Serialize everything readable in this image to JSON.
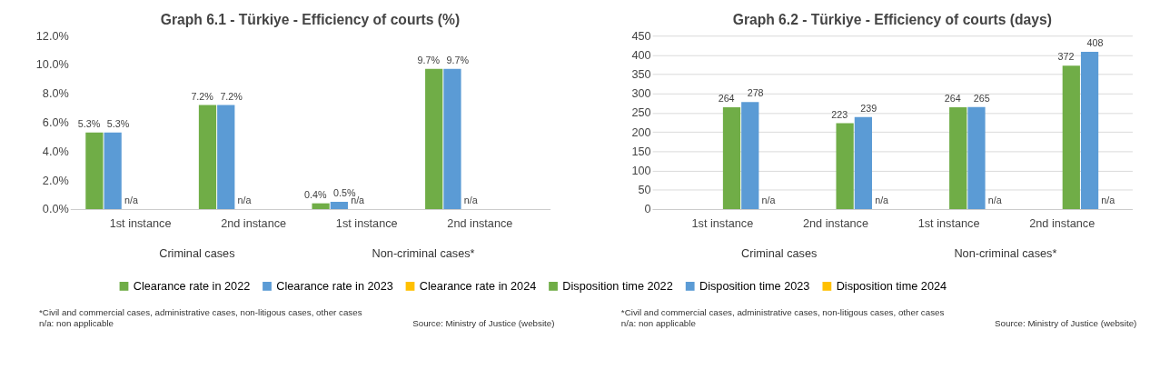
{
  "chart_data": [
    {
      "type": "bar",
      "title": "Graph 6.1 - Türkiye - Efficiency of courts (%)",
      "categories": [
        "1st instance",
        "2nd instance",
        "1st instance",
        "2nd instance"
      ],
      "series": [
        {
          "name": "Clearance rate in 2022",
          "color": "#70ad47",
          "values": [
            5.3,
            7.2,
            0.4,
            9.7
          ],
          "value_labels": [
            "5.3%",
            "7.2%",
            "0.4%",
            "9.7%"
          ]
        },
        {
          "name": "Clearance rate in 2023",
          "color": "#5b9bd5",
          "values": [
            5.3,
            7.2,
            0.5,
            9.7
          ],
          "value_labels": [
            "5.3%",
            "7.2%",
            "0.5%",
            "9.7%"
          ]
        },
        {
          "name": "Clearance rate in 2024",
          "color": "#ffc000",
          "values": [
            null,
            null,
            null,
            null
          ],
          "value_labels": [
            "n/a",
            "n/a",
            "n/a",
            "n/a"
          ]
        }
      ],
      "ylim": [
        0,
        12
      ],
      "yticks": [
        {
          "value": 0,
          "label": "0.0%"
        },
        {
          "value": 2,
          "label": "2.0%"
        },
        {
          "value": 4,
          "label": "4.0%"
        },
        {
          "value": 6,
          "label": "6.0%"
        },
        {
          "value": 8,
          "label": "8.0%"
        },
        {
          "value": 10,
          "label": "10.0%"
        },
        {
          "value": 12,
          "label": "12.0%"
        }
      ],
      "grid": false,
      "legend": "bottom",
      "annotations": [
        "Criminal cases",
        "Non-criminal cases*",
        "*Civil and commercial cases, administrative cases, non-litigous cases, other cases",
        "n/a: non applicable",
        "Source: Ministry of Justice (website)"
      ]
    },
    {
      "type": "bar",
      "title": "Graph 6.2 - Türkiye - Efficiency of courts (days)",
      "categories": [
        "1st instance",
        "2nd instance",
        "1st instance",
        "2nd instance"
      ],
      "series": [
        {
          "name": "Disposition time 2022",
          "color": "#70ad47",
          "values": [
            264,
            223,
            264,
            372
          ],
          "value_labels": [
            "264",
            "223",
            "264",
            "372"
          ]
        },
        {
          "name": "Disposition time 2023",
          "color": "#5b9bd5",
          "values": [
            278,
            239,
            265,
            408
          ],
          "value_labels": [
            "278",
            "239",
            "265",
            "408"
          ]
        },
        {
          "name": "Disposition time 2024",
          "color": "#ffc000",
          "values": [
            null,
            null,
            null,
            null
          ],
          "value_labels": [
            "n/a",
            "n/a",
            "n/a",
            "n/a"
          ]
        }
      ],
      "ylim": [
        0,
        450
      ],
      "yticks": [
        0,
        50,
        100,
        150,
        200,
        250,
        300,
        350,
        400,
        450
      ],
      "grid": "y",
      "legend": "bottom",
      "annotations": [
        "Criminal cases",
        "Non-criminal cases*",
        "*Civil and commercial cases, administrative cases, non-litigous cases, other cases",
        "n/a: non applicable",
        "Source: Ministry of Justice (website)"
      ]
    }
  ]
}
